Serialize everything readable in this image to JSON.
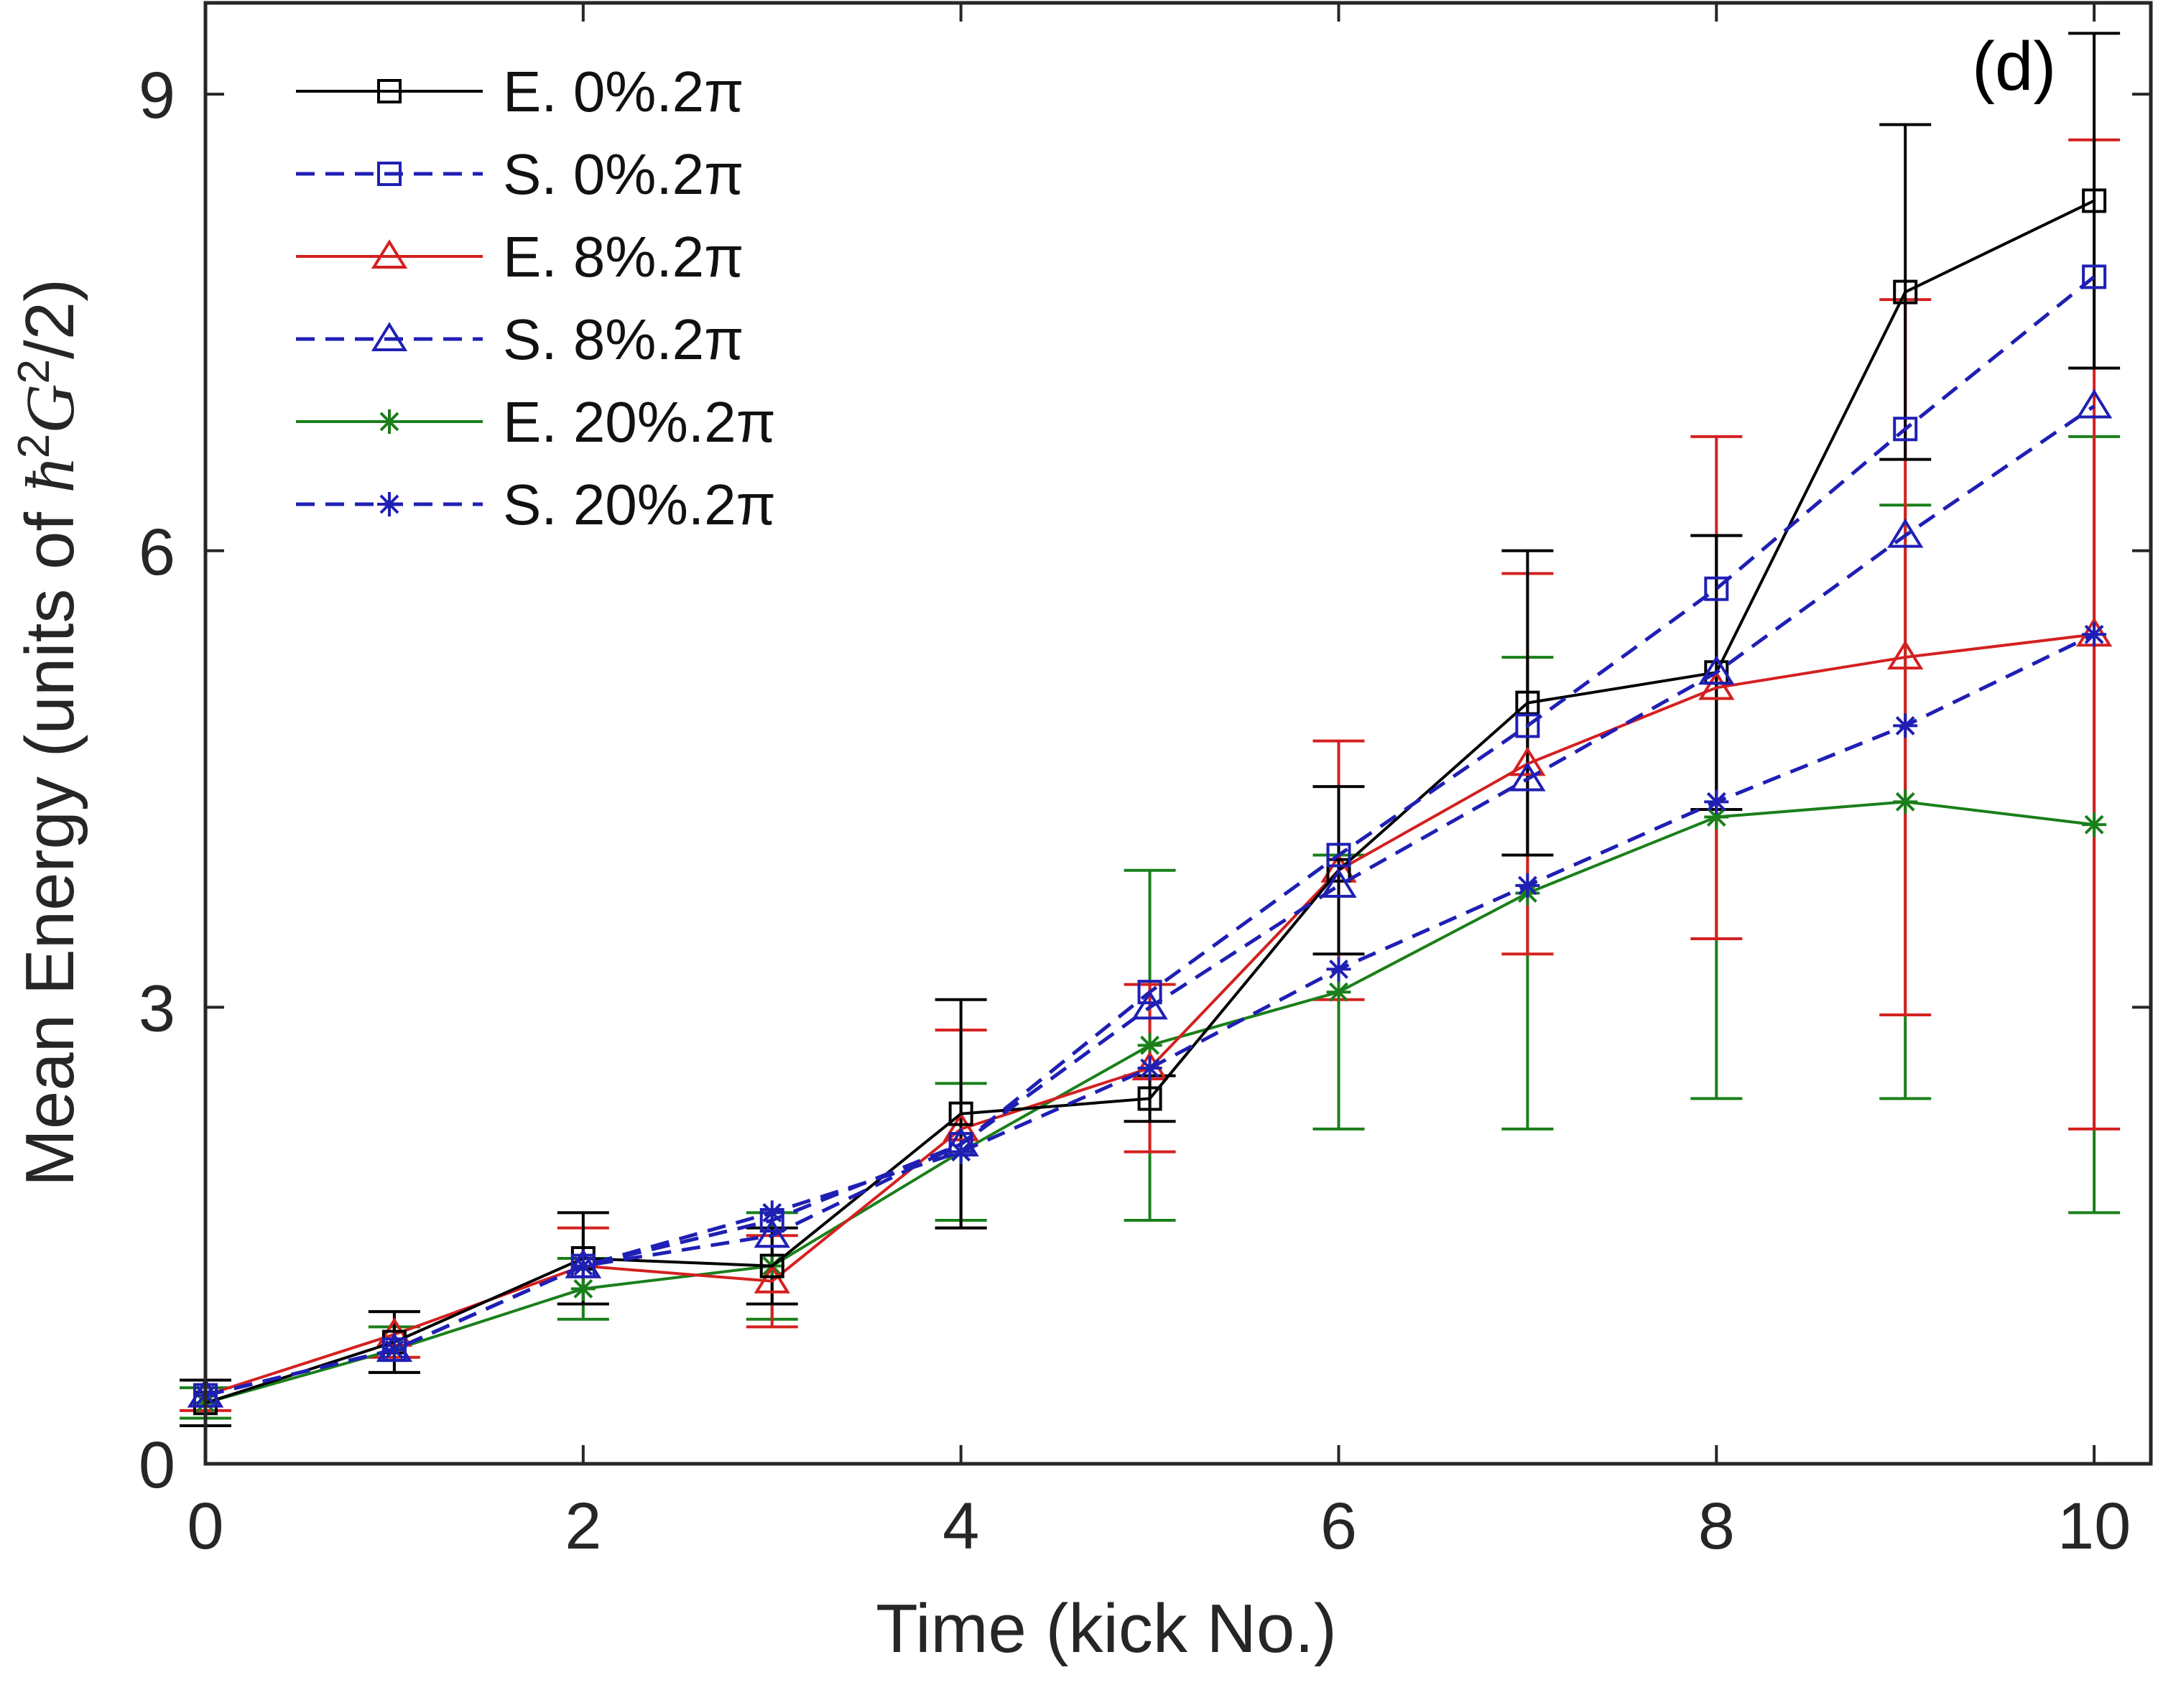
{
  "chart_data": {
    "type": "line",
    "panel_label": "(d)",
    "xlabel": "Time (kick No.)",
    "ylabel": "Mean Energy (units of ħ²G²/2)",
    "ylabel_parts": {
      "prefix": "Mean Energy (units of ",
      "hbar": "ħ",
      "sup_a": "2",
      "G": "G",
      "sup_b": "2",
      "suffix": "/2)"
    },
    "xlim": [
      0,
      10.3
    ],
    "ylim": [
      0,
      9.6
    ],
    "xticks": [
      "0",
      "2",
      "4",
      "6",
      "8",
      "10"
    ],
    "yticks": [
      "0",
      "3",
      "6",
      "9"
    ],
    "grid": false,
    "legend_position": "top-left",
    "series": [
      {
        "name": "E. 0%.2π",
        "color": "#000000",
        "dash": "solid",
        "marker": "square",
        "x": [
          0,
          1,
          2,
          3,
          4,
          5,
          6,
          7,
          8,
          9,
          10
        ],
        "y": [
          0.4,
          0.8,
          1.35,
          1.3,
          2.3,
          2.4,
          3.9,
          5.0,
          5.2,
          7.7,
          8.3
        ],
        "err": [
          0.15,
          0.2,
          0.3,
          0.25,
          0.75,
          0.15,
          0.55,
          1.0,
          0.9,
          1.1,
          1.1
        ]
      },
      {
        "name": "S. 0%.2π",
        "color": "#1f1fb4",
        "dash": "dashed",
        "marker": "square",
        "x": [
          0,
          1,
          2,
          3,
          4,
          5,
          6,
          7,
          8,
          9,
          10
        ],
        "y": [
          0.45,
          0.75,
          1.3,
          1.6,
          2.1,
          3.1,
          4.0,
          4.85,
          5.75,
          6.8,
          7.8
        ],
        "err": null
      },
      {
        "name": "E. 8%.2π",
        "color": "#d42020",
        "dash": "solid",
        "marker": "triangle",
        "x": [
          0,
          1,
          2,
          3,
          4,
          5,
          6,
          7,
          8,
          9,
          10
        ],
        "y": [
          0.45,
          0.85,
          1.3,
          1.2,
          2.2,
          2.6,
          3.9,
          4.6,
          5.1,
          5.3,
          5.45
        ],
        "err": [
          0.1,
          0.15,
          0.25,
          0.3,
          0.65,
          0.55,
          0.85,
          1.25,
          1.65,
          2.35,
          3.25
        ]
      },
      {
        "name": "S. 8%.2π",
        "color": "#1f1fb4",
        "dash": "dashed",
        "marker": "triangle",
        "x": [
          0,
          1,
          2,
          3,
          4,
          5,
          6,
          7,
          8,
          9,
          10
        ],
        "y": [
          0.45,
          0.75,
          1.3,
          1.5,
          2.1,
          3.0,
          3.8,
          4.5,
          5.2,
          6.1,
          6.95
        ],
        "err": null
      },
      {
        "name": "E. 20%.2π",
        "color": "#1a7f1a",
        "dash": "solid",
        "marker": "star",
        "x": [
          0,
          1,
          2,
          3,
          4,
          5,
          6,
          7,
          8,
          9,
          10
        ],
        "y": [
          0.4,
          0.75,
          1.15,
          1.3,
          2.05,
          2.75,
          3.1,
          3.75,
          4.25,
          4.35,
          4.2
        ],
        "err": [
          0.1,
          0.15,
          0.2,
          0.35,
          0.45,
          1.15,
          0.9,
          1.55,
          1.85,
          1.95,
          2.55
        ]
      },
      {
        "name": "S. 20%.2π",
        "color": "#1f1fb4",
        "dash": "dashed",
        "marker": "star",
        "x": [
          0,
          1,
          2,
          3,
          4,
          5,
          6,
          7,
          8,
          9,
          10
        ],
        "y": [
          0.45,
          0.75,
          1.3,
          1.65,
          2.05,
          2.6,
          3.25,
          3.8,
          4.35,
          4.85,
          5.45
        ],
        "err": null
      }
    ]
  }
}
